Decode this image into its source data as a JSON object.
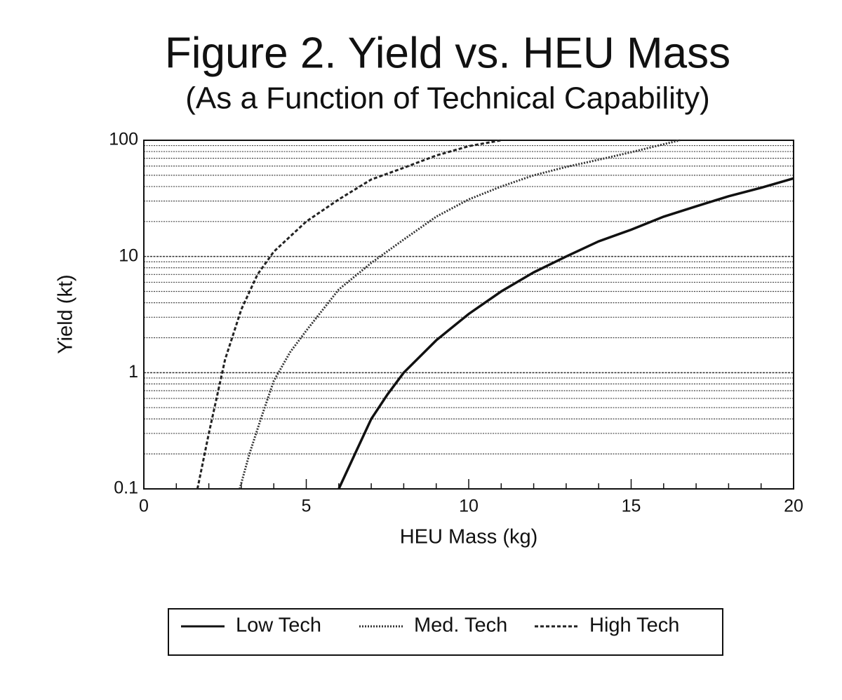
{
  "chart_data": {
    "type": "line",
    "title": "Figure 2.  Yield vs. HEU Mass",
    "subtitle": "(As a Function of Technical Capability)",
    "x_label": "HEU Mass (kg)",
    "y_label": "Yield (kt)",
    "xlim": [
      0,
      20
    ],
    "xticks": [
      0,
      5,
      10,
      15,
      20
    ],
    "xminorticks": [
      1,
      2,
      3,
      4,
      6,
      7,
      8,
      9,
      11,
      12,
      13,
      14,
      16,
      17,
      18,
      19
    ],
    "ylim": [
      0.1,
      100
    ],
    "yscale": "log",
    "yticks": [
      0.1,
      1,
      10,
      100
    ],
    "yminorticks": [
      0.2,
      0.3,
      0.4,
      0.5,
      0.6,
      0.7,
      0.8,
      0.9,
      2,
      3,
      4,
      5,
      6,
      7,
      8,
      9,
      20,
      30,
      40,
      50,
      60,
      70,
      80,
      90
    ],
    "grid": true,
    "legend": "bottom",
    "series": [
      {
        "name": "Low Tech",
        "color": "#111111",
        "style": "solid",
        "x": [
          6,
          6.5,
          7,
          7.5,
          8,
          9,
          10,
          11,
          12,
          13,
          14,
          15,
          16,
          17,
          18,
          19,
          20
        ],
        "values": [
          0.1,
          0.2,
          0.4,
          0.65,
          1.0,
          1.9,
          3.2,
          5,
          7.3,
          10,
          13.5,
          17,
          22,
          27,
          33,
          39,
          47
        ]
      },
      {
        "name": "Med. Tech",
        "color": "#333333",
        "style": "dotted",
        "x": [
          2.95,
          3.25,
          3.6,
          4,
          4.5,
          5,
          6,
          7,
          8,
          9,
          10,
          11,
          12,
          13,
          14,
          15,
          16.5
        ],
        "values": [
          0.1,
          0.2,
          0.4,
          0.85,
          1.5,
          2.3,
          5.2,
          8.8,
          14,
          22,
          31,
          40,
          50,
          59,
          68,
          79,
          100
        ]
      },
      {
        "name": "High Tech",
        "color": "#222222",
        "style": "dashed",
        "x": [
          1.65,
          2,
          2.5,
          3,
          3.5,
          4,
          5,
          6,
          7,
          8,
          9,
          10,
          11
        ],
        "values": [
          0.1,
          0.3,
          1.3,
          3.5,
          7,
          11,
          20,
          31,
          46,
          58,
          74,
          89,
          100
        ]
      }
    ]
  }
}
